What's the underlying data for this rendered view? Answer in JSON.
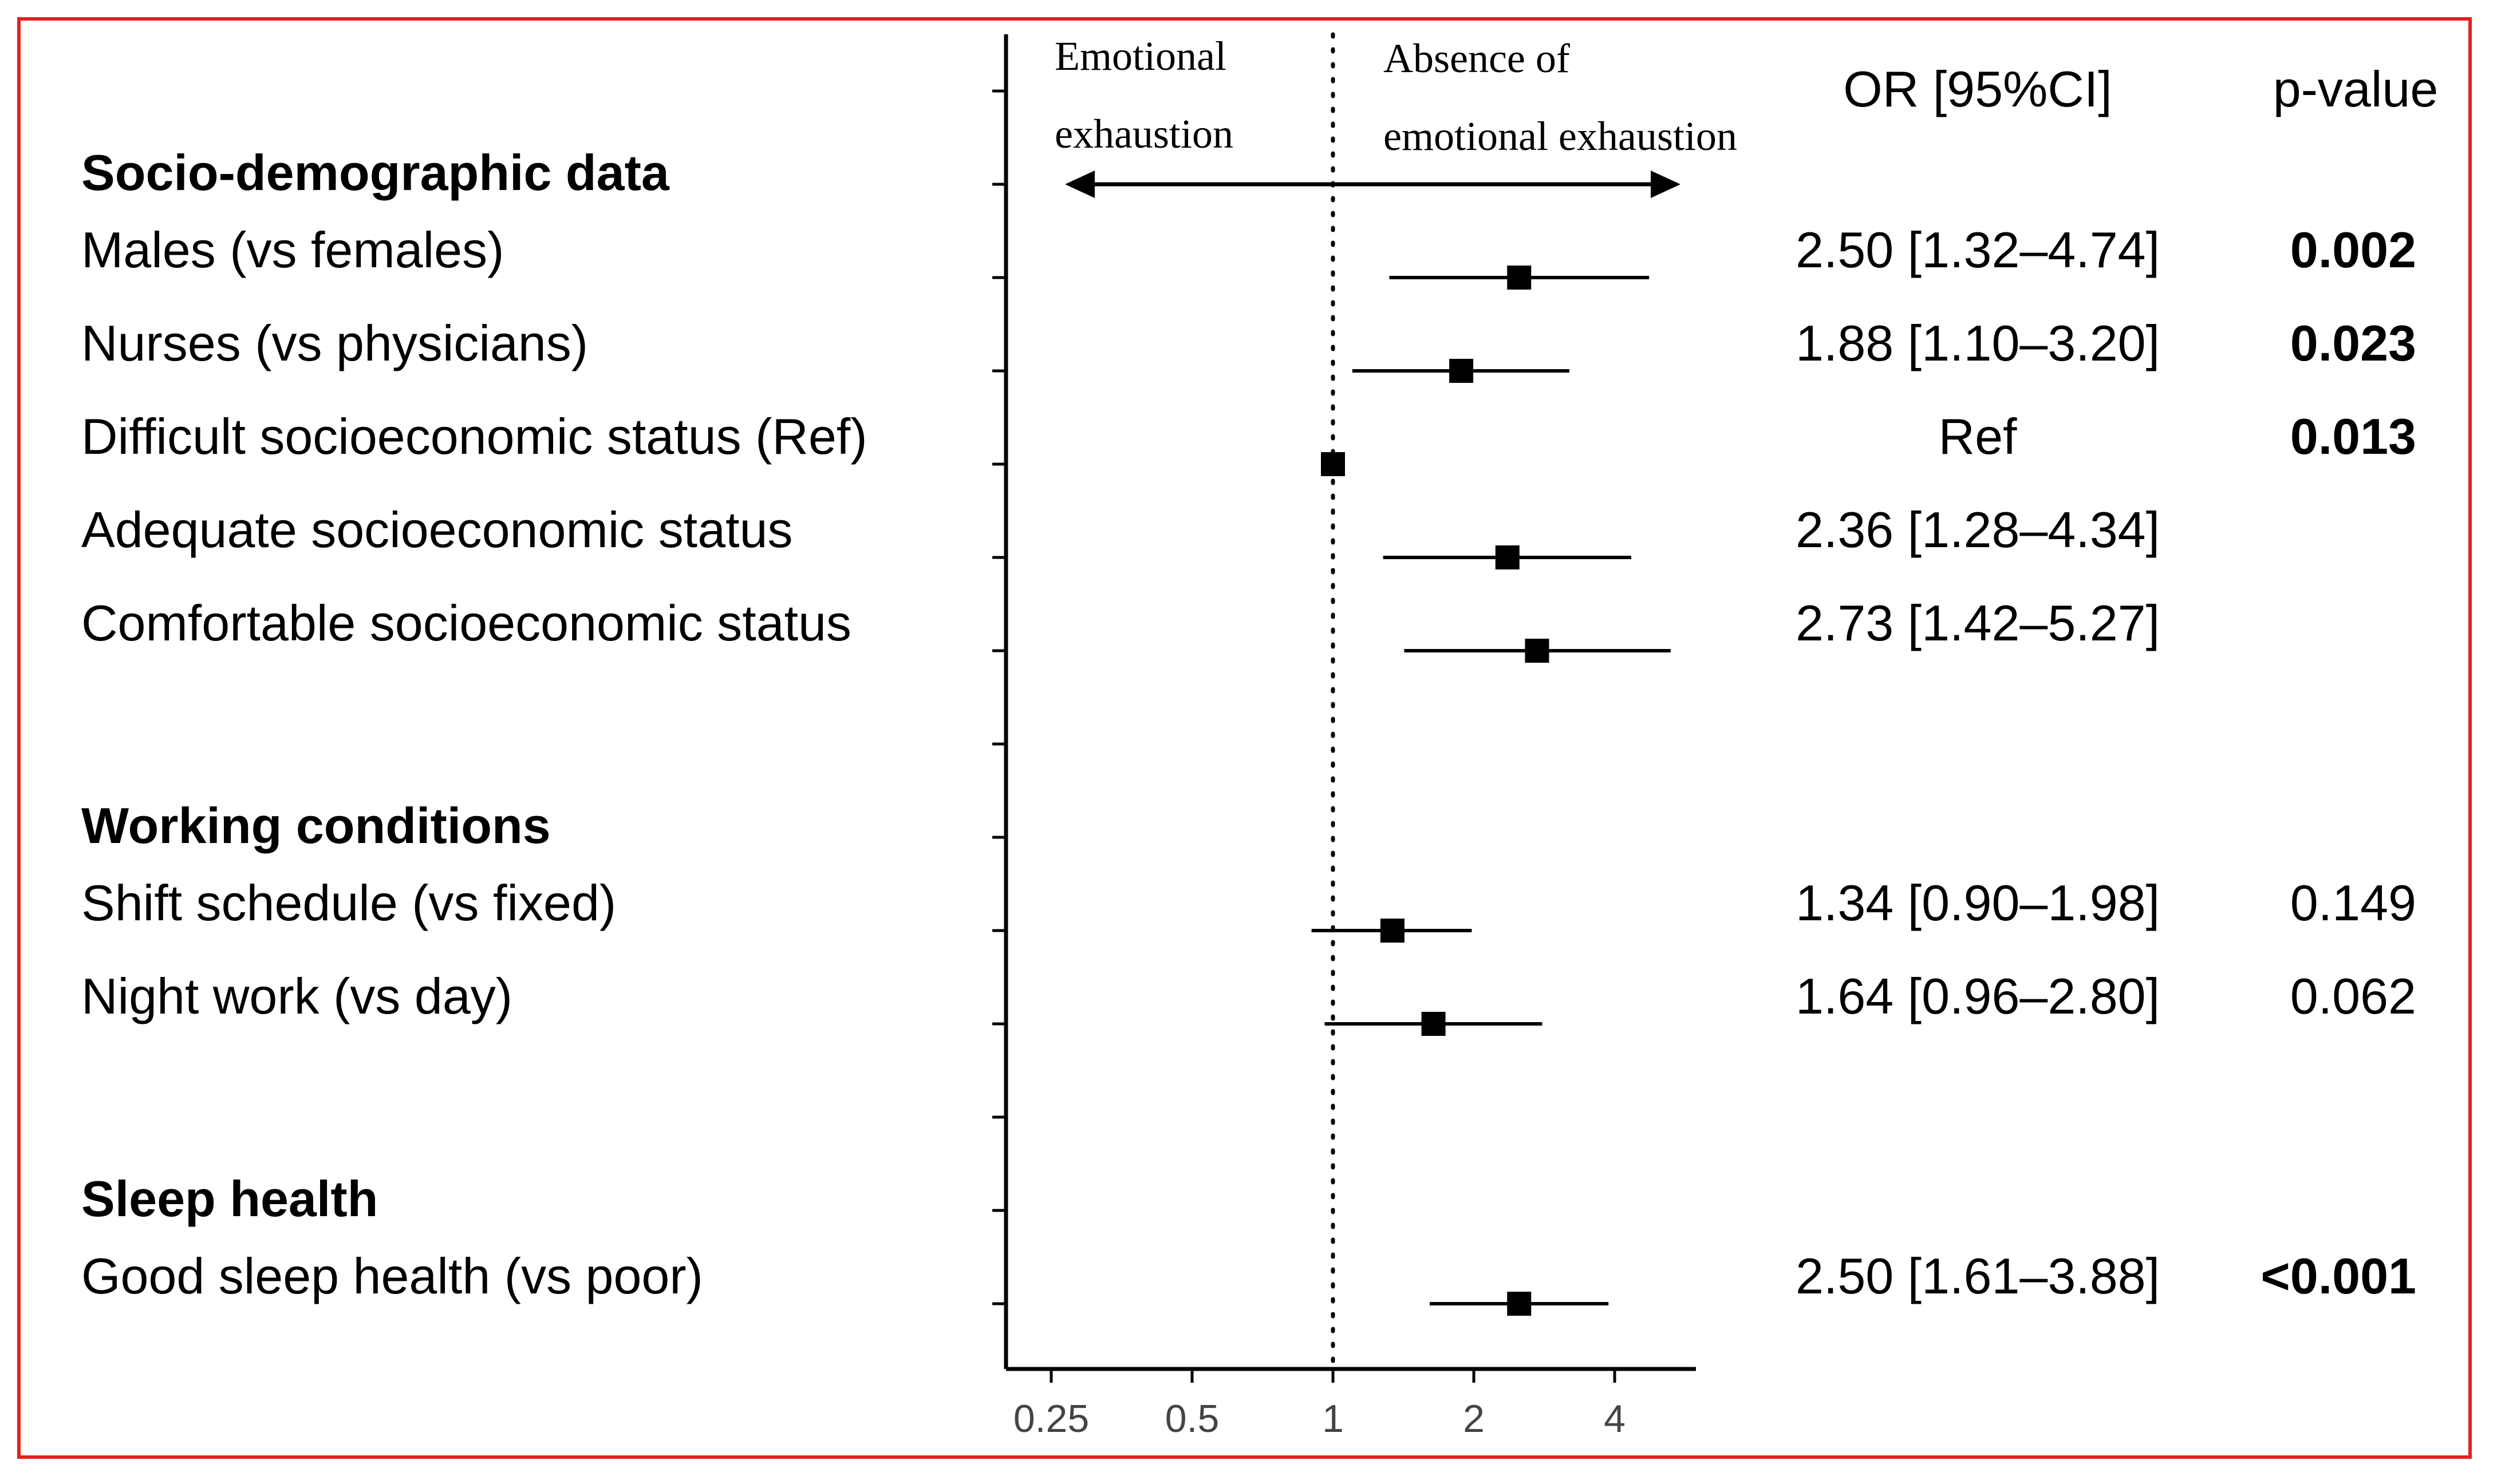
{
  "chart_data": {
    "type": "forest",
    "x_scale": "log2",
    "xlim": [
      0.2,
      5.3
    ],
    "x_ticks": [
      0.25,
      0.5,
      1,
      2,
      4
    ],
    "x_tick_labels": [
      "0.25",
      "0.5",
      "1",
      "2",
      "4"
    ],
    "reference_line": 1,
    "direction_labels": {
      "left_line1": "Emotional",
      "left_line2": "exhaustion",
      "right_line1": "Absence of",
      "right_line2": "emotional exhaustion"
    },
    "column_headers": {
      "or": "OR [95%CI]",
      "p": "p-value"
    },
    "rows": [
      {
        "kind": "section",
        "label": "Socio-demographic data"
      },
      {
        "kind": "item",
        "label": "Males (vs females)",
        "or": 2.5,
        "lo": 1.32,
        "hi": 4.74,
        "or_text": "2.50 [1.32–4.74]",
        "p": "0.002",
        "p_bold": true
      },
      {
        "kind": "item",
        "label": "Nurses (vs physicians)",
        "or": 1.88,
        "lo": 1.1,
        "hi": 3.2,
        "or_text": "1.88 [1.10–3.20]",
        "p": "0.023",
        "p_bold": true
      },
      {
        "kind": "item",
        "label": "Difficult socioeconomic status (Ref)",
        "or": 1.0,
        "lo": null,
        "hi": null,
        "or_text": "Ref",
        "p": "0.013",
        "p_bold": true
      },
      {
        "kind": "item",
        "label": "Adequate socioeconomic status",
        "or": 2.36,
        "lo": 1.28,
        "hi": 4.34,
        "or_text": "2.36 [1.28–4.34]",
        "p": "",
        "p_bold": false
      },
      {
        "kind": "item",
        "label": "Comfortable socioeconomic status",
        "or": 2.73,
        "lo": 1.42,
        "hi": 5.27,
        "or_text": "2.73 [1.42–5.27]",
        "p": "",
        "p_bold": false
      },
      {
        "kind": "blank"
      },
      {
        "kind": "section",
        "label": "Working conditions"
      },
      {
        "kind": "item",
        "label": "Shift schedule (vs fixed)",
        "or": 1.34,
        "lo": 0.9,
        "hi": 1.98,
        "or_text": "1.34 [0.90–1.98]",
        "p": "0.149",
        "p_bold": false
      },
      {
        "kind": "item",
        "label": "Night work (vs day)",
        "or": 1.64,
        "lo": 0.96,
        "hi": 2.8,
        "or_text": "1.64 [0.96–2.80]",
        "p": "0.062",
        "p_bold": false
      },
      {
        "kind": "blank"
      },
      {
        "kind": "section",
        "label": "Sleep health"
      },
      {
        "kind": "item",
        "label": "Good sleep health (vs poor)",
        "or": 2.5,
        "lo": 1.61,
        "hi": 3.88,
        "or_text": "2.50 [1.61–3.88]",
        "p": "<0.001",
        "p_bold": true
      }
    ]
  },
  "colors": {
    "frame": "#e32020",
    "ink": "#000000",
    "tick_label": "#444444"
  }
}
